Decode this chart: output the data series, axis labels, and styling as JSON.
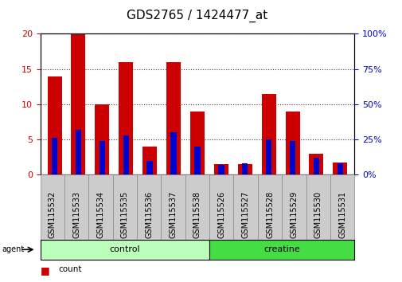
{
  "title": "GDS2765 / 1424477_at",
  "samples": [
    "GSM115532",
    "GSM115533",
    "GSM115534",
    "GSM115535",
    "GSM115536",
    "GSM115537",
    "GSM115538",
    "GSM115526",
    "GSM115527",
    "GSM115528",
    "GSM115529",
    "GSM115530",
    "GSM115531"
  ],
  "counts": [
    14.0,
    20.0,
    10.0,
    16.0,
    4.0,
    16.0,
    9.0,
    1.5,
    1.5,
    11.5,
    9.0,
    3.0,
    1.7
  ],
  "percentile_ranks": [
    26,
    32,
    24,
    28,
    10,
    30,
    20,
    7,
    8,
    25,
    24,
    12,
    8
  ],
  "groups": [
    {
      "label": "control",
      "start": 0,
      "end": 7,
      "color": "#bbffbb"
    },
    {
      "label": "creatine",
      "start": 7,
      "end": 13,
      "color": "#44dd44"
    }
  ],
  "ylim_left": [
    0,
    20
  ],
  "ylim_right": [
    0,
    100
  ],
  "yticks_left": [
    0,
    5,
    10,
    15,
    20
  ],
  "yticks_right": [
    0,
    25,
    50,
    75,
    100
  ],
  "bar_color": "#cc0000",
  "percentile_color": "#0000cc",
  "title_fontsize": 11,
  "axis_label_color_left": "#cc0000",
  "axis_label_color_right": "#0000cc",
  "xtick_bg_color": "#cccccc",
  "xtick_bg_edge": "#888888"
}
